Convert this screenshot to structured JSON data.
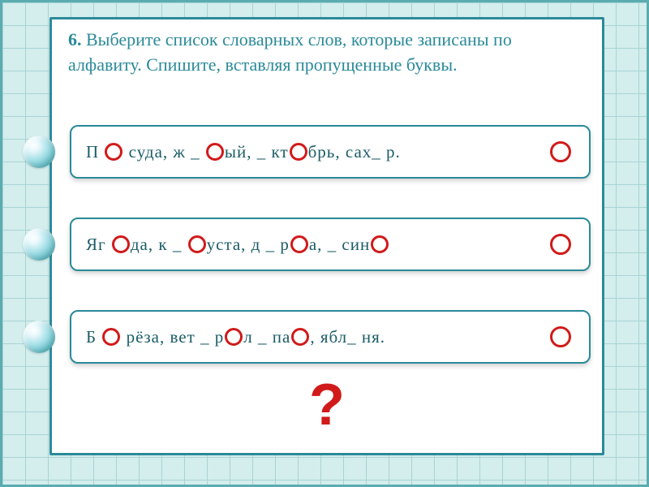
{
  "instruction": {
    "number": "6.",
    "text": " Выберите список  словарных  слов, которые записаны  по  алфавиту. Спишите, вставляя пропущенные буквы."
  },
  "options": [
    {
      "segments": [
        "П ",
        "R",
        " суда, ж _ ",
        "R",
        "ый, _ кт",
        "R",
        "брь, сах_ р."
      ]
    },
    {
      "segments": [
        "Яг ",
        "R",
        "да, к _ ",
        "R",
        "уста, д _ р",
        "R",
        "а, _ син",
        "R"
      ]
    },
    {
      "segments": [
        "Б ",
        "R",
        " рёза, вет _ р",
        "R",
        "л _ па",
        "R",
        ", ябл_ ня."
      ]
    }
  ],
  "question_mark": "?",
  "colors": {
    "border": "#2b8a99",
    "text": "#2b8a99",
    "ring": "#d11a1a",
    "grid": "#a8d4d4",
    "grid_bg": "#d4eded"
  }
}
